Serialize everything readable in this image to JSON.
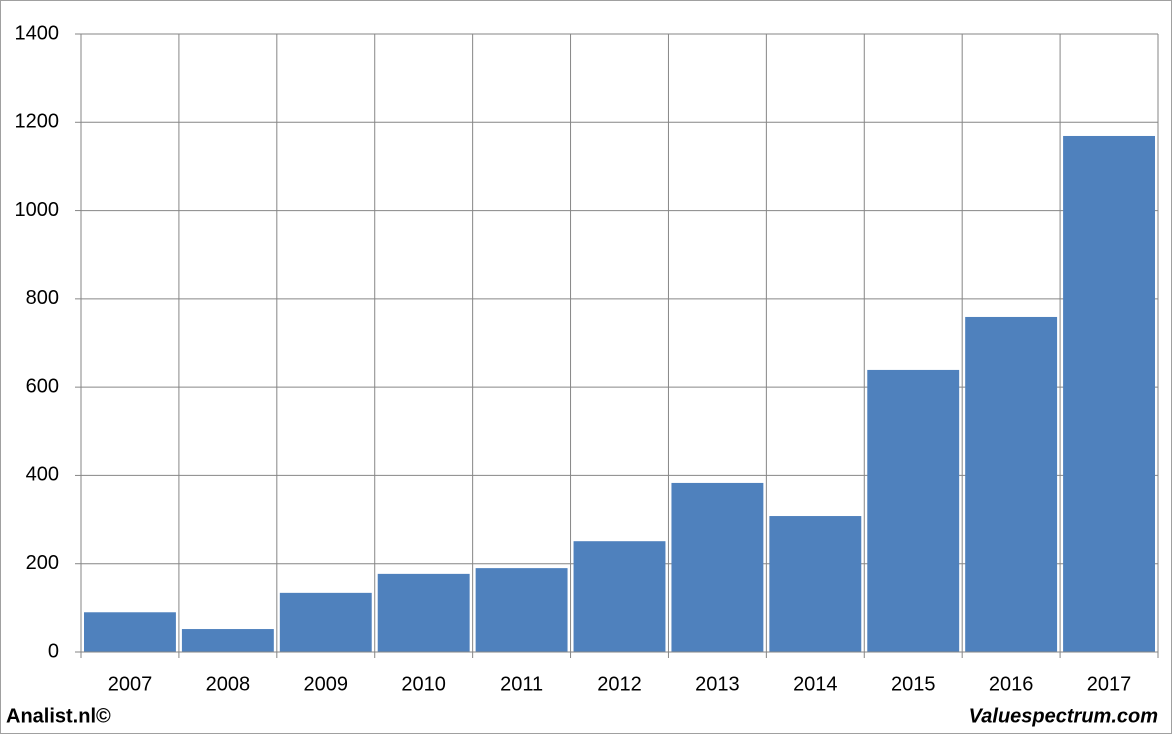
{
  "chart_data": {
    "type": "bar",
    "categories": [
      "2007",
      "2008",
      "2009",
      "2010",
      "2011",
      "2012",
      "2013",
      "2014",
      "2015",
      "2016",
      "2017"
    ],
    "values": [
      90,
      52,
      134,
      177,
      190,
      251,
      383,
      308,
      639,
      759,
      1169
    ],
    "color": "#4f81bd",
    "ylim": [
      0,
      1400
    ],
    "yticks": [
      0,
      200,
      400,
      600,
      800,
      1000,
      1200,
      1400
    ],
    "grid": true,
    "credit_left": "Analist.nl©",
    "credit_right": "Valuespectrum.com"
  }
}
